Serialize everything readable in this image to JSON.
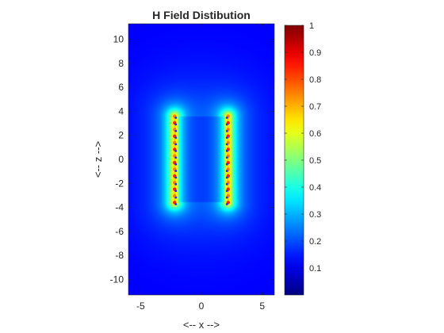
{
  "chart_data": {
    "type": "heatmap",
    "title": "H Field Distibution",
    "xlabel": "<-- x -->",
    "ylabel": "<-- z -->",
    "xlim": [
      -6,
      6
    ],
    "ylim": [
      -11.3,
      11.3
    ],
    "x_ticks": [
      -5,
      0,
      5
    ],
    "y_ticks": [
      -10,
      -8,
      -6,
      -4,
      -2,
      0,
      2,
      4,
      6,
      8,
      10
    ],
    "colorbar": {
      "colormap": "jet",
      "range": [
        0,
        1
      ],
      "ticks": [
        0.1,
        0.2,
        0.3,
        0.4,
        0.5,
        0.6,
        0.7,
        0.8,
        0.9,
        1
      ]
    },
    "field_sources": [
      {
        "name": "left-strip",
        "x": -2.2,
        "z_range": [
          -3.6,
          3.6
        ]
      },
      {
        "name": "right-strip",
        "x": 2.2,
        "z_range": [
          -3.6,
          3.6
        ]
      }
    ],
    "grid": false
  }
}
